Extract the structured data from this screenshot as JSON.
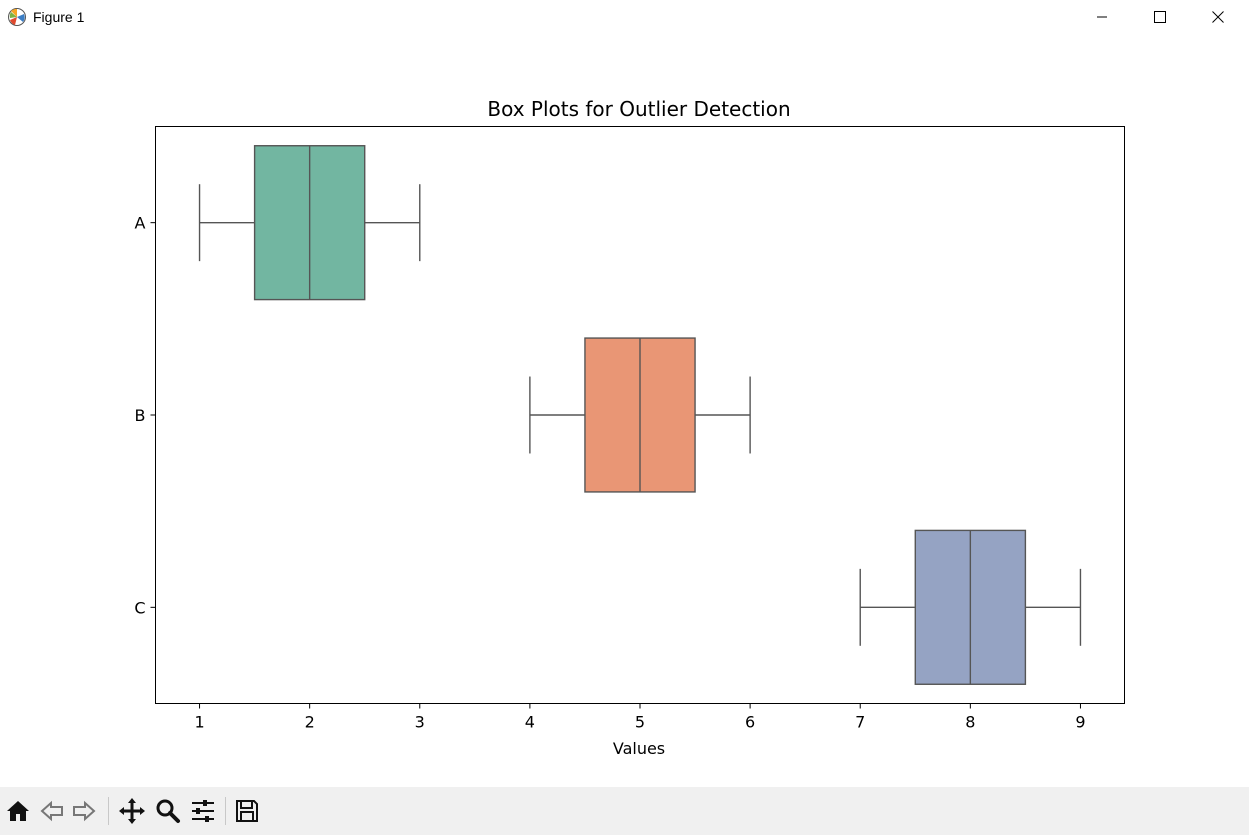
{
  "window": {
    "title": "Figure 1",
    "controls": [
      "minimize-icon",
      "maximize-icon",
      "close-icon"
    ]
  },
  "toolbar": {
    "buttons": [
      "home-icon",
      "back-arrow-icon",
      "forward-arrow-icon",
      "pan-icon",
      "zoom-icon",
      "configure-subplots-icon",
      "save-icon"
    ]
  },
  "chart_data": {
    "type": "box",
    "orientation": "horizontal",
    "title": "Box Plots for Outlier Detection",
    "xlabel": "Values",
    "ylabel": "",
    "xlim": [
      0.6,
      9.4
    ],
    "xticks": [
      1,
      2,
      3,
      4,
      5,
      6,
      7,
      8,
      9
    ],
    "categories": [
      "A",
      "B",
      "C"
    ],
    "boxes": [
      {
        "name": "A",
        "min": 1,
        "q1": 1.5,
        "median": 2,
        "q3": 2.5,
        "max": 3,
        "color": "#72b6a1"
      },
      {
        "name": "B",
        "min": 4,
        "q1": 4.5,
        "median": 5,
        "q3": 5.5,
        "max": 6,
        "color": "#e99675"
      },
      {
        "name": "C",
        "min": 7,
        "q1": 7.5,
        "median": 8,
        "q3": 8.5,
        "max": 9,
        "color": "#95a3c3"
      }
    ],
    "grid": false,
    "legend": "none"
  }
}
